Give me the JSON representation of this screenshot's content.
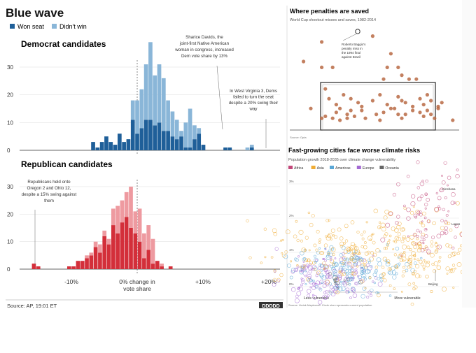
{
  "colors": {
    "dem_won": "#1f5f99",
    "dem_lost": "#8ab6d8",
    "rep_won": "#d32f3a",
    "rep_lost": "#ee9aa0",
    "pen_dot": "#b86a44",
    "africa": "#c2487a",
    "asia": "#efac35",
    "americas": "#5aa7d6",
    "europe": "#a46ad3",
    "oceania": "#666666",
    "axis": "#333333",
    "grid": "#dddddd"
  },
  "blue_wave": {
    "title": "Blue wave",
    "legend": [
      {
        "label": "Won seat",
        "color_key": "dem_won"
      },
      {
        "label": "Didn't win",
        "color_key": "dem_lost"
      }
    ],
    "source": "Source: AP, 19:01 ET",
    "logo": "DDDDD",
    "x_tick_labels": [
      "-10%",
      "0% change in\nvote share",
      "+10%",
      "+20%"
    ]
  },
  "chart_data": [
    {
      "type": "bar",
      "title": "Democrat candidates",
      "xlabel": "0% change in vote share",
      "x_ticks": [
        -10,
        0,
        10,
        20
      ],
      "ylim": [
        0,
        30
      ],
      "y_ticks": [
        0,
        10,
        20,
        30
      ],
      "bin_width": 0.67,
      "x_start": -7.0,
      "series": [
        {
          "name": "Won seat",
          "values": [
            3,
            1,
            3,
            5,
            3,
            2,
            6,
            3,
            4,
            11,
            6,
            8,
            11,
            11,
            9,
            10,
            7,
            7,
            5,
            4,
            5,
            1,
            1,
            4,
            6,
            2,
            0,
            0,
            0,
            0,
            1,
            1,
            0,
            0,
            0,
            0,
            1
          ]
        },
        {
          "name": "Didn't win",
          "values": [
            0,
            0,
            0,
            0,
            0,
            0,
            0,
            0,
            0,
            7,
            12,
            14,
            20,
            28,
            18,
            21,
            19,
            11,
            9,
            7,
            2,
            9,
            14,
            5,
            2,
            0,
            0,
            0,
            0,
            0,
            0,
            0,
            0,
            0,
            0,
            1,
            1
          ]
        }
      ],
      "annotations": [
        {
          "text": "Sharice Davids, the joint-first Native American woman in congress, increased Dem vote share by 13%"
        },
        {
          "text": "In West Virginia 3, Dems failed to turn the seat despite a 20% swing their way"
        }
      ]
    },
    {
      "type": "bar",
      "title": "Republican candidates",
      "x_ticks": [
        -10,
        0,
        10,
        20
      ],
      "ylim": [
        0,
        30
      ],
      "y_ticks": [
        0,
        10,
        20,
        30
      ],
      "bin_width": 0.67,
      "x_start": -16.0,
      "series": [
        {
          "name": "Won seat",
          "values": [
            2,
            1,
            0,
            0,
            0,
            0,
            0,
            0,
            1,
            1,
            3,
            3,
            4,
            5,
            8,
            6,
            12,
            9,
            16,
            13,
            17,
            19,
            15,
            13,
            10,
            4,
            7,
            2,
            3,
            1,
            0,
            1,
            0
          ]
        },
        {
          "name": "Didn't win",
          "values": [
            0,
            0,
            0,
            0,
            0,
            0,
            0,
            0,
            0,
            0,
            0,
            0,
            1,
            1,
            2,
            3,
            2,
            2,
            6,
            10,
            8,
            9,
            15,
            8,
            12,
            9,
            9,
            9,
            0,
            1,
            0,
            0,
            0
          ]
        }
      ],
      "annotations": [
        {
          "text": "Republicans held onto Oregon 2 and Ohio 12, despite a 15% swing against them"
        }
      ]
    },
    {
      "type": "scatter",
      "title": "Where penalties are saved",
      "subtitle": "World Cup shootout misses and saves, 1982-2014",
      "annotations": [
        {
          "text": "Roberto Baggio's penalty miss in the 1994 final against Brazil"
        }
      ],
      "note": "Source: Opta",
      "x": [
        3,
        8,
        22,
        27,
        8,
        11,
        26,
        29,
        30,
        25,
        32,
        34,
        5,
        9,
        10,
        12,
        14,
        16,
        18,
        19,
        22,
        24,
        26,
        28,
        29,
        30,
        31,
        33,
        35,
        36,
        37,
        38,
        40,
        41,
        12,
        13,
        15,
        16,
        17,
        19,
        23,
        25,
        27,
        29,
        31,
        33,
        35,
        37,
        38,
        40,
        8,
        9,
        11,
        13,
        15,
        20,
        24,
        30,
        36,
        39,
        44
      ],
      "y": [
        3.5,
        4.5,
        4.8,
        3.9,
        3.2,
        3.2,
        3.2,
        3.2,
        2.8,
        2.6,
        2.6,
        2.6,
        1.1,
        2.1,
        1.6,
        1.3,
        1.8,
        1.6,
        1.4,
        1.2,
        1.5,
        1.8,
        1.3,
        1.1,
        1.7,
        1.5,
        1.4,
        1.2,
        1.6,
        1.3,
        1.8,
        1.5,
        1.2,
        1.4,
        0.9,
        1.1,
        0.8,
        1.0,
        0.7,
        1.0,
        0.8,
        0.9,
        1.1,
        0.8,
        0.8,
        1.0,
        0.9,
        1.0,
        0.8,
        1.1,
        0.6,
        0.7,
        0.6,
        0.5,
        0.6,
        0.6,
        0.5,
        0.6,
        0.7,
        0.6,
        0.5
      ]
    },
    {
      "type": "scatter",
      "title": "Fast-growing cities face worse climate risks",
      "subtitle": "Population growth 2018-2035 over climate change vulnerability",
      "legend": [
        {
          "name": "Africa",
          "color_key": "africa"
        },
        {
          "name": "Asia",
          "color_key": "asia"
        },
        {
          "name": "Americas",
          "color_key": "americas"
        },
        {
          "name": "Europe",
          "color_key": "europe"
        },
        {
          "name": "Oceania",
          "color_key": "oceania"
        }
      ],
      "y_tick_labels": [
        "0%",
        "1%",
        "2%",
        "3%"
      ],
      "x_labels": [
        "Less vulnerable",
        "More vulnerable"
      ],
      "annotations": [
        "Kinshasa",
        "Lagos",
        "Beijing"
      ],
      "source": "Source: Verisk Maplecroft. Circle size represents current population"
    }
  ]
}
